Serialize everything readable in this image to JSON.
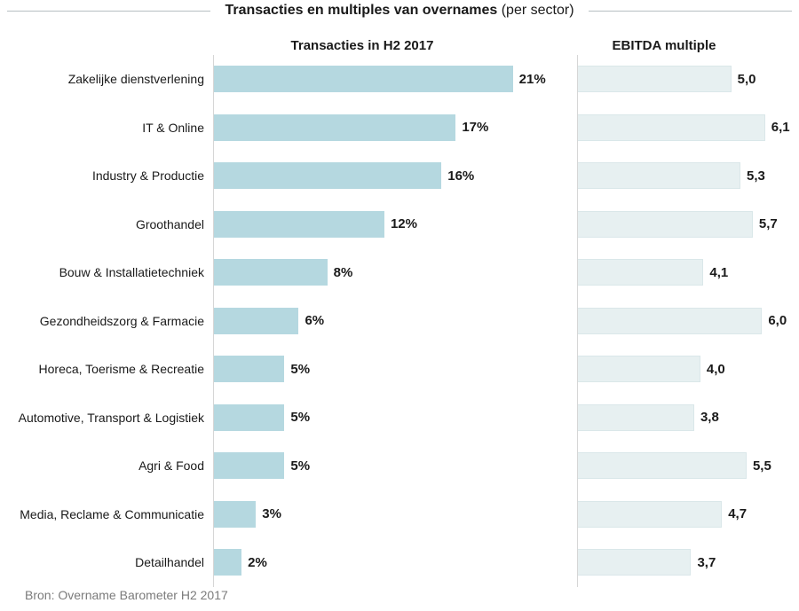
{
  "title": {
    "main": "Transacties en multiples van overnames",
    "suffix": " (per sector)"
  },
  "source": "Bron: Overname Barometer H2 2017",
  "colors": {
    "transactions_bar": "#b5d8e0",
    "ebitda_bar": "#e7f0f1",
    "ebitda_bar_border": "#dae7e9",
    "axis": "#d6d6d6",
    "title_line": "#b7bfc2",
    "source_text": "#7b7b7b"
  },
  "chart_data": {
    "type": "bar",
    "orientation": "horizontal",
    "title": "Transacties en multiples van overnames (per sector)",
    "panel_headers": [
      "Transacties in H2 2017",
      "EBITDA multiple"
    ],
    "categories": [
      "Zakelijke dienstverlening",
      "IT & Online",
      "Industry & Productie",
      "Groothandel",
      "Bouw & Installatietechniek",
      "Gezondheidszorg & Farmacie",
      "Horeca, Toerisme & Recreatie",
      "Automotive, Transport & Logistiek",
      "Agri & Food",
      "Media, Reclame & Communicatie",
      "Detailhandel"
    ],
    "series": [
      {
        "name": "Transacties in H2 2017",
        "unit": "%",
        "values": [
          21,
          17,
          16,
          12,
          8,
          6,
          5,
          5,
          5,
          3,
          2
        ],
        "labels": [
          "21%",
          "17%",
          "16%",
          "12%",
          "8%",
          "6%",
          "5%",
          "5%",
          "5%",
          "3%",
          "2%"
        ],
        "axis_max": 25.5
      },
      {
        "name": "EBITDA multiple",
        "unit": "x",
        "values": [
          5.0,
          6.1,
          5.3,
          5.7,
          4.1,
          6.0,
          4.0,
          3.8,
          5.5,
          4.7,
          3.7
        ],
        "labels": [
          "5,0",
          "6,1",
          "5,3",
          "5,7",
          "4,1",
          "6,0",
          "4,0",
          "3,8",
          "5,5",
          "4,7",
          "3,7"
        ],
        "axis_max": 7.2
      }
    ],
    "legend": "none",
    "grid": "off",
    "value_labels": "outside-end",
    "source": "Bron: Overname Barometer H2 2017"
  }
}
